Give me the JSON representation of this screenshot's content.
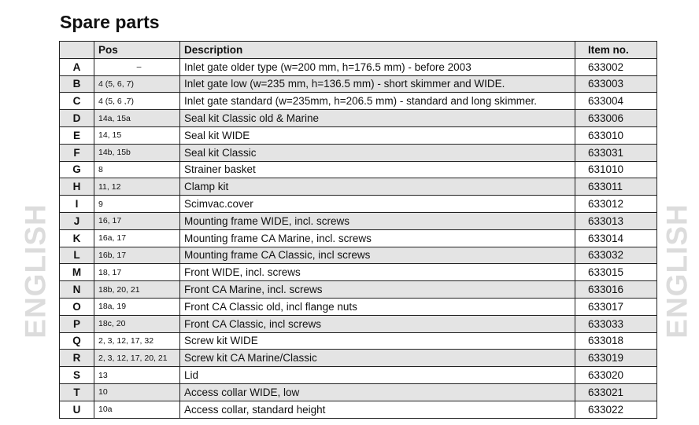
{
  "title": "Spare parts",
  "side_label": "ENGLISH",
  "columns": [
    "",
    "Pos",
    "Description",
    "Item no."
  ],
  "rows": [
    {
      "letter": "A",
      "pos": "–",
      "description": "Inlet gate older type (w=200 mm, h=176.5 mm) - before 2003",
      "item": "633002"
    },
    {
      "letter": "B",
      "pos": "4 (5, 6, 7)",
      "description": "Inlet gate low (w=235 mm, h=136.5 mm) - short skimmer and WIDE.",
      "item": "633003"
    },
    {
      "letter": "C",
      "pos": "4 (5, 6 ,7)",
      "description": "Inlet gate standard (w=235mm, h=206.5 mm) - standard and long skimmer.",
      "item": "633004"
    },
    {
      "letter": "D",
      "pos": "14a, 15a",
      "description": "Seal kit Classic old & Marine",
      "item": "633006"
    },
    {
      "letter": "E",
      "pos": "14, 15",
      "description": "Seal kit WIDE",
      "item": "633010"
    },
    {
      "letter": "F",
      "pos": "14b, 15b",
      "description": "Seal kit Classic",
      "item": "633031"
    },
    {
      "letter": "G",
      "pos": "8",
      "description": "Strainer basket",
      "item": "631010"
    },
    {
      "letter": "H",
      "pos": "11, 12",
      "description": "Clamp kit",
      "item": "633011"
    },
    {
      "letter": "I",
      "pos": "9",
      "description": "Scimvac.cover",
      "item": "633012"
    },
    {
      "letter": "J",
      "pos": "16, 17",
      "description": "Mounting frame WIDE, incl. screws",
      "item": "633013"
    },
    {
      "letter": "K",
      "pos": "16a, 17",
      "description": "Mounting frame CA Marine, incl. screws",
      "item": "633014"
    },
    {
      "letter": "L",
      "pos": "16b, 17",
      "description": "Mounting frame CA Classic, incl screws",
      "item": "633032"
    },
    {
      "letter": "M",
      "pos": "18, 17",
      "description": "Front WIDE, incl. screws",
      "item": "633015"
    },
    {
      "letter": "N",
      "pos": "18b, 20, 21",
      "description": "Front CA Marine, incl. screws",
      "item": "633016"
    },
    {
      "letter": "O",
      "pos": "18a, 19",
      "description": "Front CA Classic old, incl flange nuts",
      "item": "633017"
    },
    {
      "letter": "P",
      "pos": "18c, 20",
      "description": "Front CA Classic, incl screws",
      "item": "633033"
    },
    {
      "letter": "Q",
      "pos": "2, 3, 12, 17, 32",
      "description": "Screw kit WIDE",
      "item": "633018"
    },
    {
      "letter": "R",
      "pos": "2, 3, 12, 17, 20, 21",
      "description": "Screw kit CA Marine/Classic",
      "item": "633019"
    },
    {
      "letter": "S",
      "pos": "13",
      "description": "Lid",
      "item": "633020"
    },
    {
      "letter": "T",
      "pos": "10",
      "description": "Access collar WIDE, low",
      "item": "633021"
    },
    {
      "letter": "U",
      "pos": "10a",
      "description": "Access collar, standard height",
      "item": "633022"
    }
  ]
}
